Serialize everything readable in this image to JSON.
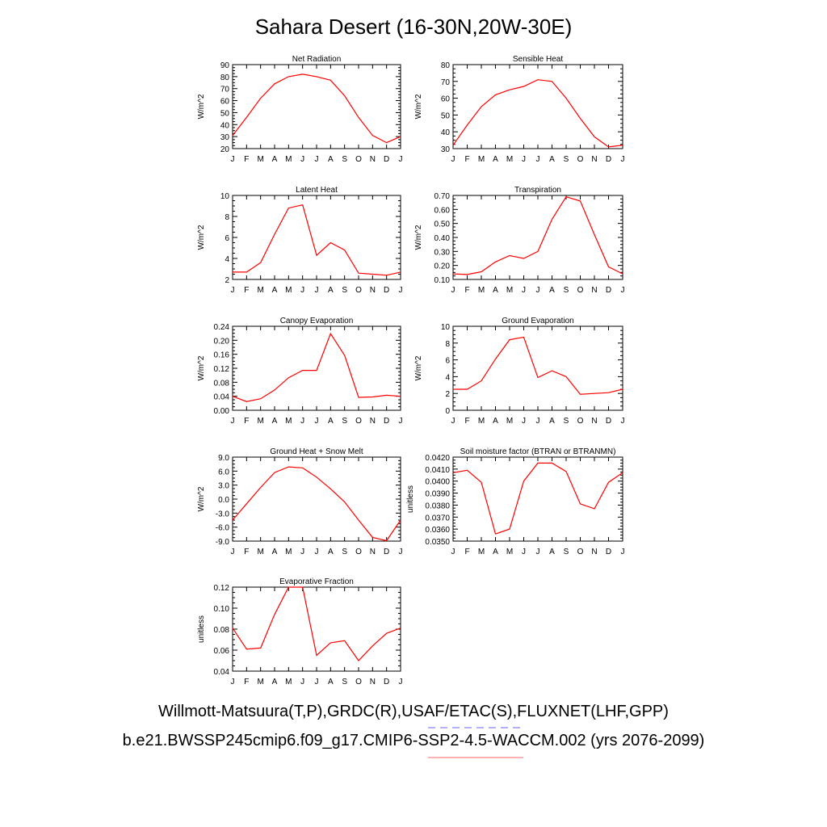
{
  "title": "Sahara Desert (16-30N,20W-30E)",
  "footer": {
    "observations": "Willmott-Matsuura(T,P),GRDC(R),USAF/ETAC(S),FLUXNET(LHF,GPP)",
    "model": "b.e21.BWSSP245cmip6.f09_g17.CMIP6-SSP2-4.5-WACCM.002 (yrs 2076-2099)",
    "obs_line_color": "#8080ff",
    "model_line_color": "#ff8080"
  },
  "chart_data": [
    {
      "type": "line",
      "title": "Net Radiation",
      "ylabel": "W/m^2",
      "categories": [
        "J",
        "F",
        "M",
        "A",
        "M",
        "J",
        "J",
        "A",
        "S",
        "O",
        "N",
        "D",
        "J"
      ],
      "ylim": [
        20,
        90
      ],
      "yticks": [
        "20",
        "30",
        "40",
        "50",
        "60",
        "70",
        "80",
        "90"
      ],
      "series": [
        {
          "color": "#ff0000",
          "values": [
            31,
            46,
            62,
            74,
            80,
            82,
            80,
            77,
            64,
            46,
            31,
            25,
            30
          ]
        }
      ]
    },
    {
      "type": "line",
      "title": "Sensible Heat",
      "ylabel": "W/m^2",
      "categories": [
        "J",
        "F",
        "M",
        "A",
        "M",
        "J",
        "J",
        "A",
        "S",
        "O",
        "N",
        "D",
        "J"
      ],
      "ylim": [
        30,
        80
      ],
      "yticks": [
        "30",
        "40",
        "50",
        "60",
        "70",
        "80"
      ],
      "series": [
        {
          "color": "#ff0000",
          "values": [
            32,
            44,
            55,
            62,
            65,
            67,
            71,
            70,
            60,
            48,
            37,
            31,
            32
          ]
        }
      ]
    },
    {
      "type": "line",
      "title": "Latent Heat",
      "ylabel": "W/m^2",
      "categories": [
        "J",
        "F",
        "M",
        "A",
        "M",
        "J",
        "J",
        "A",
        "S",
        "O",
        "N",
        "D",
        "J"
      ],
      "ylim": [
        2,
        10
      ],
      "yticks": [
        "2",
        "4",
        "6",
        "8",
        "10"
      ],
      "series": [
        {
          "color": "#ff0000",
          "values": [
            2.7,
            2.7,
            3.6,
            6.3,
            8.8,
            9.1,
            4.3,
            5.5,
            4.8,
            2.6,
            2.5,
            2.4,
            2.7
          ]
        }
      ]
    },
    {
      "type": "line",
      "title": "Transpiration",
      "ylabel": "W/m^2",
      "categories": [
        "J",
        "F",
        "M",
        "A",
        "M",
        "J",
        "J",
        "A",
        "S",
        "O",
        "N",
        "D",
        "J"
      ],
      "ylim": [
        0.1,
        0.7
      ],
      "yticks": [
        "0.10",
        "0.20",
        "0.30",
        "0.40",
        "0.50",
        "0.60",
        "0.70"
      ],
      "series": [
        {
          "color": "#ff0000",
          "values": [
            0.14,
            0.135,
            0.155,
            0.225,
            0.27,
            0.25,
            0.3,
            0.53,
            0.69,
            0.66,
            0.42,
            0.19,
            0.14
          ]
        }
      ]
    },
    {
      "type": "line",
      "title": "Canopy Evaporation",
      "ylabel": "W/m^2",
      "categories": [
        "J",
        "F",
        "M",
        "A",
        "M",
        "J",
        "J",
        "A",
        "S",
        "O",
        "N",
        "D",
        "J"
      ],
      "ylim": [
        0,
        0.24
      ],
      "yticks": [
        "0.00",
        "0.04",
        "0.08",
        "0.12",
        "0.16",
        "0.20",
        "0.24"
      ],
      "series": [
        {
          "color": "#ff0000",
          "values": [
            0.04,
            0.025,
            0.033,
            0.058,
            0.093,
            0.114,
            0.114,
            0.219,
            0.157,
            0.037,
            0.038,
            0.043,
            0.04
          ]
        }
      ]
    },
    {
      "type": "line",
      "title": "Ground Evaporation",
      "ylabel": "W/m^2",
      "categories": [
        "J",
        "F",
        "M",
        "A",
        "M",
        "J",
        "J",
        "A",
        "S",
        "O",
        "N",
        "D",
        "J"
      ],
      "ylim": [
        0,
        10
      ],
      "yticks": [
        "0",
        "2",
        "4",
        "6",
        "8",
        "10"
      ],
      "series": [
        {
          "color": "#ff0000",
          "values": [
            2.5,
            2.5,
            3.5,
            6.1,
            8.4,
            8.7,
            3.9,
            4.7,
            4.0,
            1.9,
            2.0,
            2.1,
            2.5
          ]
        }
      ]
    },
    {
      "type": "line",
      "title": "Ground Heat + Snow Melt",
      "ylabel": "W/m^2",
      "categories": [
        "J",
        "F",
        "M",
        "A",
        "M",
        "J",
        "J",
        "A",
        "S",
        "O",
        "N",
        "D",
        "J"
      ],
      "ylim": [
        -9,
        9
      ],
      "yticks": [
        "-9.0",
        "-6.0",
        "-3.0",
        "0.0",
        "3.0",
        "6.0",
        "9.0"
      ],
      "series": [
        {
          "color": "#ff0000",
          "values": [
            -4.5,
            -1.0,
            2.5,
            5.7,
            6.9,
            6.7,
            4.7,
            2.2,
            -0.6,
            -4.5,
            -8.2,
            -8.9,
            -4.5
          ]
        }
      ]
    },
    {
      "type": "line",
      "title": "Soil moisture factor (BTRAN or BTRANMN)",
      "ylabel": "unitless",
      "categories": [
        "J",
        "F",
        "M",
        "A",
        "M",
        "J",
        "J",
        "A",
        "S",
        "O",
        "N",
        "D",
        "J"
      ],
      "ylim": [
        0.035,
        0.042
      ],
      "yticks": [
        "0.0350",
        "0.0360",
        "0.0370",
        "0.0380",
        "0.0390",
        "0.0400",
        "0.0410",
        "0.0420"
      ],
      "series": [
        {
          "color": "#ff0000",
          "values": [
            0.0407,
            0.0409,
            0.0399,
            0.0356,
            0.036,
            0.04,
            0.0415,
            0.0415,
            0.0408,
            0.0381,
            0.0377,
            0.0399,
            0.0407
          ]
        }
      ]
    },
    {
      "type": "line",
      "title": "Evaporative Fraction",
      "ylabel": "unitless",
      "categories": [
        "J",
        "F",
        "M",
        "A",
        "M",
        "J",
        "J",
        "A",
        "S",
        "O",
        "N",
        "D",
        "J"
      ],
      "ylim": [
        0.04,
        0.12
      ],
      "yticks": [
        "0.04",
        "0.06",
        "0.08",
        "0.10",
        "0.12"
      ],
      "series": [
        {
          "color": "#ff0000",
          "values": [
            0.081,
            0.061,
            0.062,
            0.094,
            0.12,
            0.122,
            0.055,
            0.067,
            0.069,
            0.05,
            0.064,
            0.076,
            0.081
          ]
        }
      ]
    }
  ]
}
